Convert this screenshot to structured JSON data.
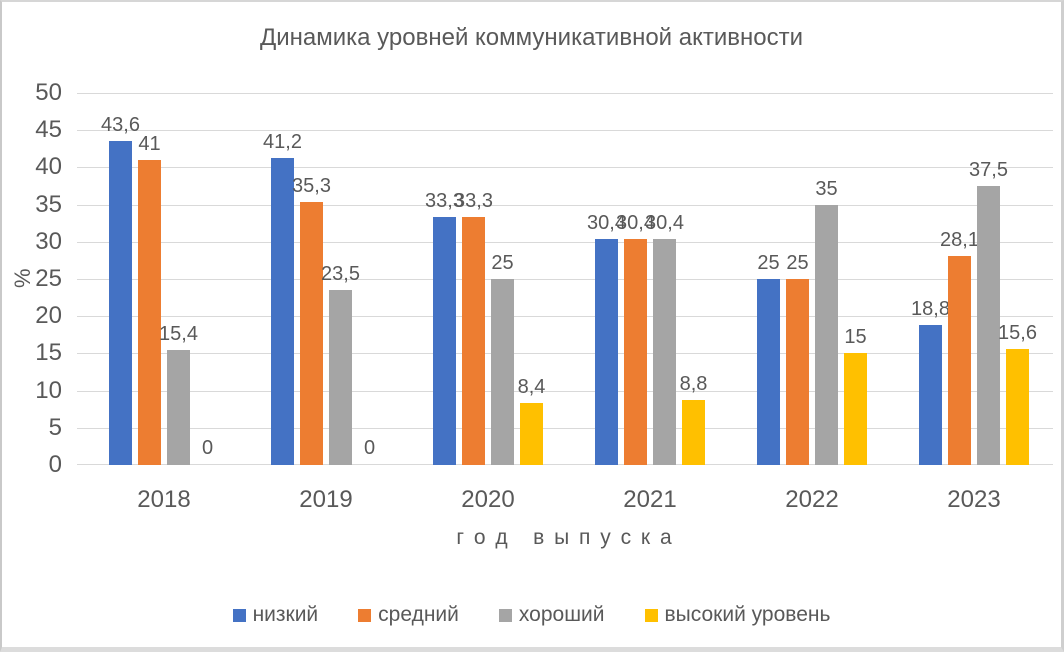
{
  "chart_data": {
    "type": "bar",
    "title": "Динамика уровней коммуникативной активности",
    "xlabel": "г о д   в ы п у с к а",
    "ylabel": "%",
    "ylim": [
      0,
      50
    ],
    "ytick_step": 5,
    "yticks": [
      0,
      5,
      10,
      15,
      20,
      25,
      30,
      35,
      40,
      45,
      50
    ],
    "grid": true,
    "legend_position": "bottom",
    "decimal_separator": ",",
    "categories": [
      "2018",
      "2019",
      "2020",
      "2021",
      "2022",
      "2023"
    ],
    "series": [
      {
        "name": "низкий",
        "color": "#4472C4",
        "values": [
          43.6,
          41.2,
          33.3,
          30.4,
          25,
          18.8
        ],
        "labels": [
          "43,6",
          "41,2",
          "33,3",
          "30,4",
          "25",
          "18,8"
        ]
      },
      {
        "name": "средний",
        "color": "#ED7D31",
        "values": [
          41,
          35.3,
          33.3,
          30.4,
          25,
          28.1
        ],
        "labels": [
          "41",
          "35,3",
          "33,3",
          "30,4",
          "25",
          "28,1"
        ]
      },
      {
        "name": "хороший",
        "color": "#A5A5A5",
        "values": [
          15.4,
          23.5,
          25,
          30.4,
          35,
          37.5
        ],
        "labels": [
          "15,4",
          "23,5",
          "25",
          "30,4",
          "35",
          "37,5"
        ]
      },
      {
        "name": "высокий уровень",
        "color": "#FFC000",
        "values": [
          0,
          0,
          8.4,
          8.8,
          15,
          15.6
        ],
        "labels": [
          "0",
          "0",
          "8,4",
          "8,8",
          "15",
          "15,6"
        ]
      }
    ],
    "colors": {
      "text": "#595959",
      "gridline": "#D9D9D9",
      "background": "#FFFFFF"
    }
  }
}
